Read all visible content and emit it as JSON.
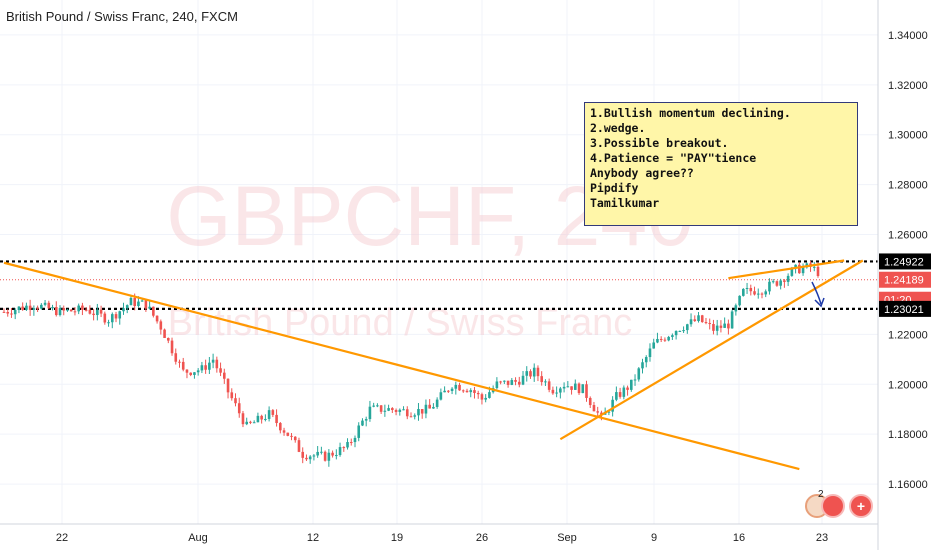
{
  "header": {
    "title": "British Pound / Swiss Franc, 240, FXCM"
  },
  "watermark": {
    "symbol": "GBPCHF, 240",
    "name": "British Pound / Swiss Franc"
  },
  "note": {
    "lines": [
      "1.Bullish momentum declining.",
      "2.wedge.",
      "3.Possible breakout.",
      "4.Patience = \"PAY\"tience",
      "",
      "Anybody agree??",
      "Pipdify",
      "Tamilkumar"
    ]
  },
  "colors": {
    "up": "#26a69a",
    "down": "#ef5350",
    "trendline": "#ff9800",
    "arrow": "#1e3aa8",
    "level": "#000000",
    "current": "#ef5350"
  },
  "chart_data": {
    "type": "candlestick",
    "x_ticks": [
      "22",
      "Aug",
      "12",
      "19",
      "26",
      "Sep",
      "9",
      "16",
      "23"
    ],
    "y_ticks": [
      1.34,
      1.32,
      1.3,
      1.28,
      1.26,
      1.22,
      1.2,
      1.18,
      1.16
    ],
    "y_tick_labels": [
      "1.34000",
      "1.32000",
      "1.30000",
      "1.28000",
      "1.26000",
      "1.22000",
      "1.20000",
      "1.18000",
      "1.16000"
    ],
    "ylim": [
      1.144,
      1.354
    ],
    "price_labels": {
      "resistance": "1.24922",
      "current": "1.24189",
      "countdown": "01:20",
      "support": "1.23021"
    },
    "levels": {
      "resistance": 1.24922,
      "current": 1.24189,
      "support": 1.23021
    },
    "anchors": [
      [
        0,
        1.229
      ],
      [
        8,
        1.232
      ],
      [
        15,
        1.229
      ],
      [
        22,
        1.23
      ],
      [
        28,
        1.226
      ],
      [
        34,
        1.233
      ],
      [
        38,
        1.232
      ],
      [
        42,
        1.223
      ],
      [
        45,
        1.214
      ],
      [
        48,
        1.205
      ],
      [
        53,
        1.206
      ],
      [
        56,
        1.21
      ],
      [
        60,
        1.197
      ],
      [
        65,
        1.183
      ],
      [
        71,
        1.188
      ],
      [
        76,
        1.18
      ],
      [
        80,
        1.172
      ],
      [
        86,
        1.171
      ],
      [
        92,
        1.175
      ],
      [
        98,
        1.19
      ],
      [
        103,
        1.19
      ],
      [
        109,
        1.189
      ],
      [
        114,
        1.19
      ],
      [
        120,
        1.2
      ],
      [
        125,
        1.198
      ],
      [
        128,
        1.194
      ],
      [
        132,
        1.2
      ],
      [
        137,
        1.201
      ],
      [
        142,
        1.205
      ],
      [
        147,
        1.198
      ],
      [
        150,
        1.2
      ],
      [
        155,
        1.198
      ],
      [
        160,
        1.186
      ],
      [
        164,
        1.195
      ],
      [
        168,
        1.2
      ],
      [
        174,
        1.216
      ],
      [
        180,
        1.222
      ],
      [
        186,
        1.226
      ],
      [
        190,
        1.222
      ],
      [
        194,
        1.224
      ],
      [
        198,
        1.237
      ],
      [
        203,
        1.238
      ],
      [
        207,
        1.241
      ],
      [
        212,
        1.246
      ],
      [
        216,
        1.247
      ],
      [
        218,
        1.245
      ]
    ],
    "trendlines": [
      {
        "from": [
          0,
          1.2487
        ],
        "to": [
          213,
          1.166
        ]
      },
      {
        "from": [
          149,
          1.178
        ],
        "to": [
          230,
          1.2496
        ]
      },
      {
        "from": [
          194,
          1.2425
        ],
        "to": [
          225,
          1.2496
        ]
      }
    ]
  }
}
